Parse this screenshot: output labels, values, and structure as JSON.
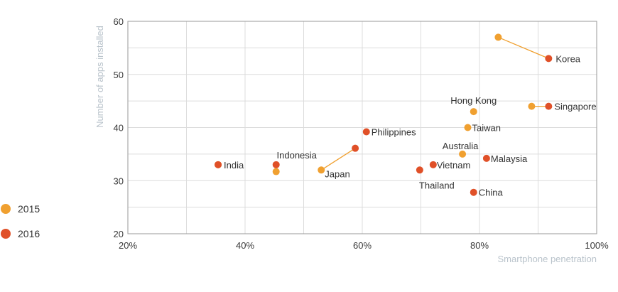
{
  "chart_data": {
    "type": "scatter",
    "xlabel": "Smartphone penetration",
    "ylabel": "Number of apps installed",
    "xlim": [
      20,
      100
    ],
    "ylim": [
      20,
      60
    ],
    "x_ticks": [
      {
        "value": 20,
        "label": "20%"
      },
      {
        "value": 40,
        "label": "40%"
      },
      {
        "value": 60,
        "label": "60%"
      },
      {
        "value": 80,
        "label": "80%"
      },
      {
        "value": 100,
        "label": "100%"
      }
    ],
    "y_ticks": [
      {
        "value": 20,
        "label": "20"
      },
      {
        "value": 30,
        "label": "30"
      },
      {
        "value": 40,
        "label": "40"
      },
      {
        "value": 50,
        "label": "50"
      },
      {
        "value": 60,
        "label": "60"
      }
    ],
    "grid": true,
    "legend_position": "left",
    "series": [
      {
        "name": "2015",
        "color": "#f0a030"
      },
      {
        "name": "2016",
        "color": "#e05028"
      }
    ],
    "countries": [
      {
        "name": "Korea",
        "x2015": 83.2,
        "y2015": 57,
        "x2016": 91.8,
        "y2016": 53
      },
      {
        "name": "Singapore",
        "x2015": 88.9,
        "y2015": 44,
        "x2016": 91.8,
        "y2016": 44
      },
      {
        "name": "Hong Kong",
        "x2015": 79.0,
        "y2015": 43
      },
      {
        "name": "Taiwan",
        "x2015": 78.0,
        "y2015": 40
      },
      {
        "name": "Australia",
        "x2015": 77.1,
        "y2015": 35
      },
      {
        "name": "Malaysia",
        "x2016": 81.2,
        "y2016": 34.2
      },
      {
        "name": "Vietnam",
        "x2016": 72.1,
        "y2016": 33
      },
      {
        "name": "Thailand",
        "x2016": 69.8,
        "y2016": 32
      },
      {
        "name": "China",
        "x2016": 79.0,
        "y2016": 27.8
      },
      {
        "name": "Philippines",
        "x2016": 60.7,
        "y2016": 39.2
      },
      {
        "name": "Japan",
        "x2015": 53.0,
        "y2015": 32,
        "x2016": 58.8,
        "y2016": 36.1
      },
      {
        "name": "Indonesia",
        "x2015": 45.3,
        "y2015": 31.7,
        "x2016": 45.3,
        "y2016": 33
      },
      {
        "name": "India",
        "x2015": 35.4,
        "y2015": 33,
        "x2016": 35.4,
        "y2016": 33
      }
    ]
  }
}
